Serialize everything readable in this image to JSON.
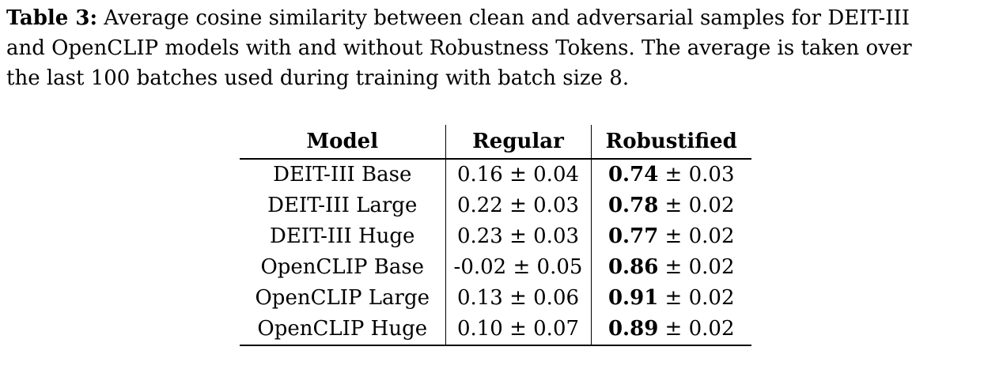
{
  "caption": {
    "label": "Table 3:",
    "line1": " Average cosine similarity between clean and adversarial samples for DEIT-III",
    "line2": "and OpenCLIP models with and without Robustness Tokens. The average is taken over",
    "line3": "the last 100 batches used during training with batch size 8."
  },
  "table": {
    "headers": {
      "model": "Model",
      "regular": "Regular",
      "robustified": "Robustified"
    },
    "rows": [
      {
        "model": "DEIT-III Base",
        "regular": "0.16 ± 0.04",
        "rob_val": "0.74",
        "rob_err": " ± 0.03"
      },
      {
        "model": "DEIT-III Large",
        "regular": "0.22 ± 0.03",
        "rob_val": "0.78",
        "rob_err": " ± 0.02"
      },
      {
        "model": "DEIT-III Huge",
        "regular": "0.23 ± 0.03",
        "rob_val": "0.77",
        "rob_err": " ± 0.02"
      },
      {
        "model": "OpenCLIP Base",
        "regular": "-0.02 ± 0.05",
        "rob_val": "0.86",
        "rob_err": " ± 0.02"
      },
      {
        "model": "OpenCLIP Large",
        "regular": "0.13 ± 0.06",
        "rob_val": "0.91",
        "rob_err": " ± 0.02"
      },
      {
        "model": "OpenCLIP Huge",
        "regular": "0.10 ± 0.07",
        "rob_val": "0.89",
        "rob_err": " ± 0.02"
      }
    ]
  },
  "colors": {
    "text": "#000000",
    "background": "#ffffff",
    "rule": "#000000"
  }
}
